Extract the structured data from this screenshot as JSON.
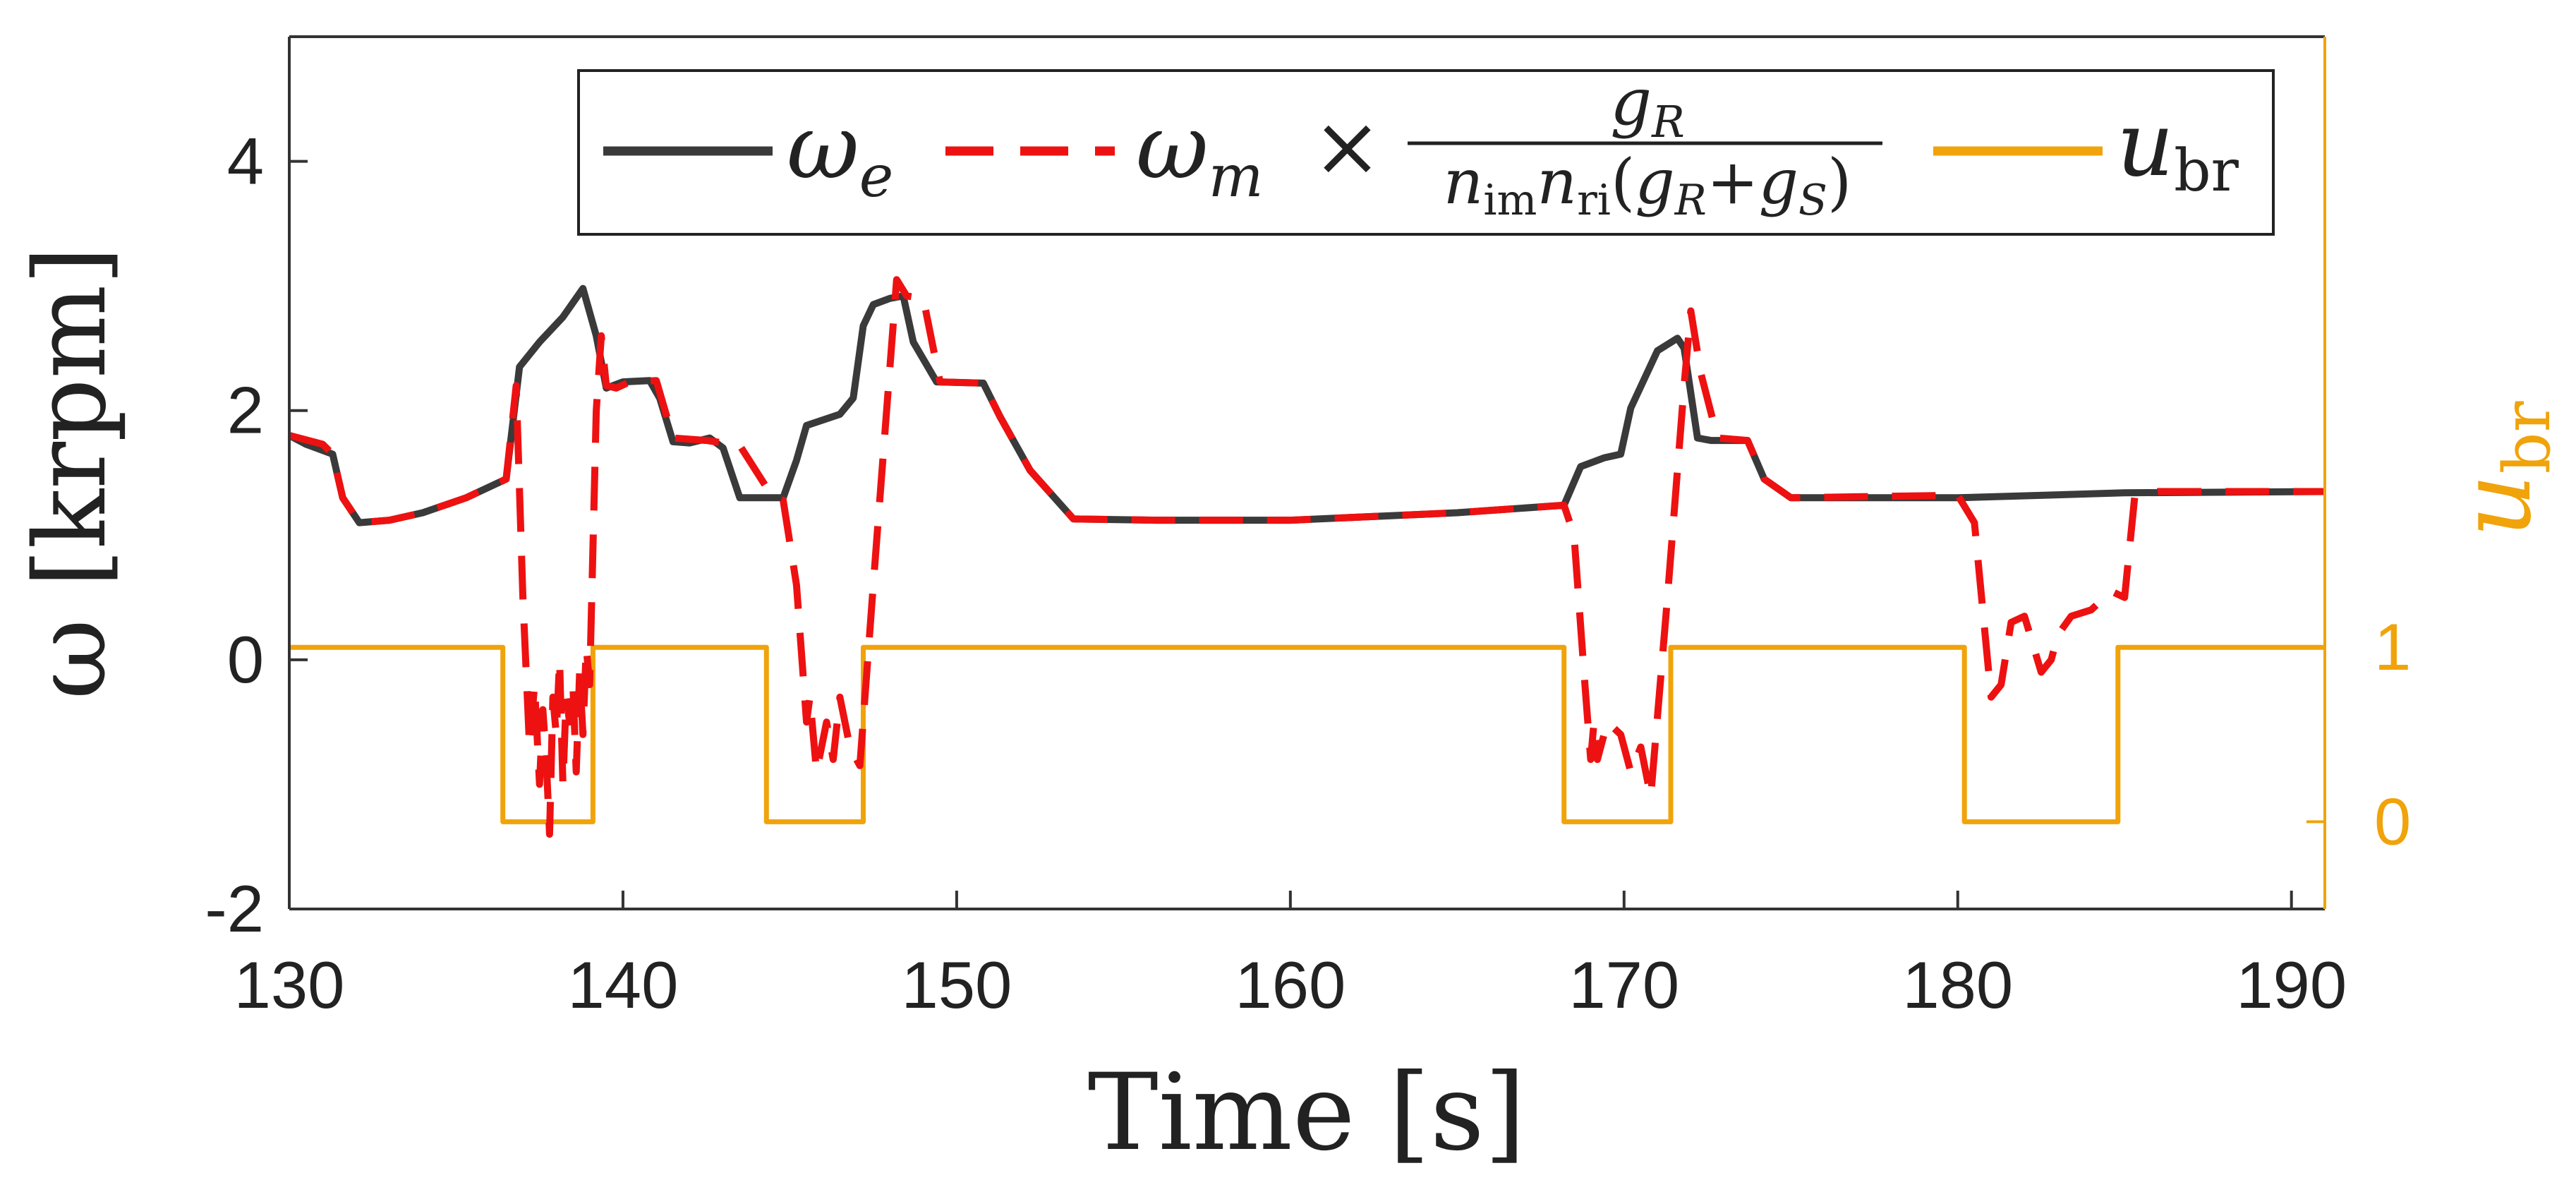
{
  "chart_data": {
    "type": "line",
    "title": "",
    "xlabel": "Time [s]",
    "ylabel": "ω [krpm]",
    "y2label": "u",
    "y2label_sub": "br",
    "xlim": [
      130,
      191
    ],
    "ylim": [
      -2,
      5
    ],
    "y2lim": [
      -0.5,
      4.5
    ],
    "x_ticks": [
      130,
      140,
      150,
      160,
      170,
      180,
      190
    ],
    "x_tick_labels": [
      "130",
      "140",
      "150",
      "160",
      "170",
      "180",
      "190"
    ],
    "y_ticks": [
      -2,
      0,
      2,
      4
    ],
    "y_tick_labels": [
      "-2",
      "0",
      "2",
      "4"
    ],
    "y2_ticks": [
      0,
      1
    ],
    "y2_tick_labels": [
      "0",
      "1"
    ],
    "grid": false,
    "legend_position": "top",
    "colors": {
      "we": "#3A3A3A",
      "wm": "#EE1111",
      "ubr": "#F0A30A"
    },
    "legend": {
      "we_symbol": "ω",
      "we_sub": "e",
      "wm_symbol": "ω",
      "wm_sub": "m",
      "times": "×",
      "frac_num": "g",
      "frac_num_sub": "R",
      "frac_den_n1": "n",
      "frac_den_n1_sub": "im",
      "frac_den_n2": "n",
      "frac_den_n2_sub": "ri",
      "frac_den_open": "(",
      "frac_den_g1": "g",
      "frac_den_g1_sub": "R",
      "frac_den_plus": "+",
      "frac_den_g2": "g",
      "frac_den_g2_sub": "S",
      "frac_den_close": ")",
      "ubr_symbol": "u",
      "ubr_sub": "br"
    },
    "series": [
      {
        "name": "ωe",
        "axis": "left",
        "style": "solid",
        "x": [
          130,
          130.5,
          131.3,
          131.6,
          132.1,
          133,
          134,
          135.3,
          136.5,
          136.9,
          137.5,
          138.2,
          138.8,
          139.2,
          139.5,
          140,
          140.8,
          141.1,
          141.5,
          142,
          142.6,
          143,
          143.5,
          144.5,
          144.8,
          145.2,
          145.5,
          146.5,
          146.9,
          147.2,
          147.5,
          148,
          148.4,
          148.7,
          149.4,
          150.8,
          151.3,
          152.2,
          153.5,
          156,
          160,
          165,
          168.2,
          168.7,
          169.4,
          169.9,
          170.2,
          171,
          171.6,
          171.8,
          172.2,
          172.6,
          173.7,
          174.2,
          175,
          180,
          185,
          191
        ],
        "values": [
          1.8,
          1.73,
          1.65,
          1.3,
          1.1,
          1.12,
          1.18,
          1.3,
          1.45,
          2.35,
          2.55,
          2.75,
          2.98,
          2.6,
          2.18,
          2.23,
          2.24,
          2.1,
          1.75,
          1.74,
          1.78,
          1.7,
          1.3,
          1.3,
          1.3,
          1.6,
          1.88,
          1.97,
          2.1,
          2.68,
          2.85,
          2.9,
          2.92,
          2.55,
          2.23,
          2.22,
          1.95,
          1.52,
          1.13,
          1.12,
          1.12,
          1.18,
          1.24,
          1.55,
          1.62,
          1.65,
          2.02,
          2.48,
          2.58,
          2.5,
          1.78,
          1.76,
          1.76,
          1.45,
          1.3,
          1.3,
          1.34,
          1.35
        ]
      },
      {
        "name": "ωm × gR / (nim nri (gR+gS))",
        "axis": "left",
        "style": "dashed",
        "x": [
          130,
          131,
          131.3,
          131.6,
          132.1,
          133,
          134,
          135.3,
          136.5,
          136.8,
          137,
          137.2,
          137.35,
          137.5,
          137.6,
          137.7,
          137.8,
          137.9,
          138,
          138.1,
          138.2,
          138.3,
          138.4,
          138.5,
          138.6,
          138.7,
          138.8,
          138.9,
          139,
          139.2,
          139.35,
          139.5,
          139.8,
          140.2,
          141,
          141.5,
          142.5,
          143.5,
          144.5,
          144.8,
          145.2,
          145.5,
          145.6,
          145.8,
          146.1,
          146.3,
          146.5,
          146.8,
          147.1,
          147.5,
          148.2,
          148.5,
          149,
          149.5,
          150.8,
          151.3,
          152.2,
          153.5,
          156,
          160,
          165,
          168.2,
          168.5,
          168.8,
          169,
          169.1,
          169.2,
          169.5,
          169.9,
          170.2,
          170.5,
          170.8,
          171.3,
          171.8,
          172,
          172.3,
          172.8,
          173.7,
          174.2,
          175,
          180,
          180.5,
          181,
          181.3,
          181.6,
          182,
          182.5,
          182.8,
          183,
          183.4,
          184,
          184.6,
          185,
          185.3,
          186,
          191
        ],
        "values": [
          1.8,
          1.73,
          1.65,
          1.3,
          1.1,
          1.12,
          1.18,
          1.3,
          1.45,
          2.2,
          0.5,
          -0.7,
          -0.2,
          -1,
          -0.4,
          -0.8,
          -1.4,
          -0.3,
          -0.6,
          0,
          -1,
          -0.3,
          -0.5,
          -0.2,
          -0.9,
          -0.1,
          -0.6,
          0.1,
          -0.2,
          2.0,
          2.6,
          2.2,
          2.18,
          2.23,
          2.24,
          1.78,
          1.76,
          1.72,
          1.3,
          1.28,
          0.6,
          -0.5,
          -0.3,
          -0.9,
          -0.5,
          -0.8,
          -0.3,
          -0.7,
          -0.85,
          0.6,
          3.05,
          2.92,
          2.9,
          2.23,
          2.22,
          1.95,
          1.52,
          1.13,
          1.12,
          1.12,
          1.18,
          1.24,
          1.0,
          -0.1,
          -0.8,
          -0.5,
          -0.8,
          -0.5,
          -0.6,
          -0.9,
          -0.7,
          -1.1,
          0.5,
          2.2,
          2.8,
          2.3,
          1.78,
          1.76,
          1.45,
          1.3,
          1.32,
          1.1,
          -0.3,
          -0.2,
          0.3,
          0.35,
          -0.1,
          0.0,
          0.2,
          0.35,
          0.4,
          0.55,
          0.5,
          1.3,
          1.35,
          1.35
        ]
      },
      {
        "name": "ubr",
        "axis": "right",
        "style": "solid",
        "x": [
          130,
          136.4,
          136.4,
          139.1,
          139.1,
          144.3,
          144.3,
          147.2,
          147.2,
          168.2,
          168.2,
          171.4,
          171.4,
          180.2,
          180.2,
          184.8,
          184.8,
          191
        ],
        "values": [
          1,
          1,
          0,
          0,
          1,
          1,
          0,
          0,
          1,
          1,
          0,
          0,
          1,
          1,
          0,
          0,
          1,
          1
        ]
      }
    ]
  }
}
